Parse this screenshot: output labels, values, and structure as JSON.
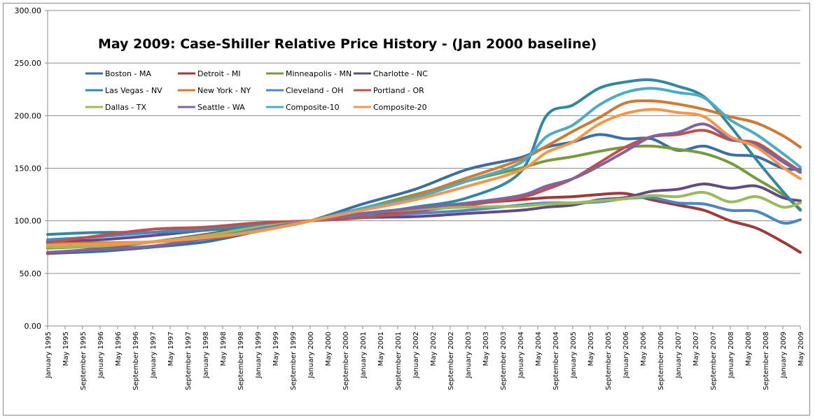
{
  "chart_data": {
    "type": "line",
    "title": "May 2009: Case-Shiller Relative Price History - (Jan 2000 baseline)",
    "xlabel": "",
    "ylabel": "",
    "ylim": [
      0,
      300
    ],
    "yticks": [
      "0.00",
      "50.00",
      "100.00",
      "150.00",
      "200.00",
      "250.00",
      "300.00"
    ],
    "grid": true,
    "legend_placement": "top-left",
    "xticks": [
      "January 1995",
      "May 1995",
      "September 1995",
      "January 1996",
      "May 1996",
      "September 1996",
      "January 1997",
      "May 1997",
      "September 1997",
      "January 1998",
      "May 1998",
      "September 1998",
      "January 1999",
      "May 1999",
      "September 1999",
      "January 2000",
      "May 2000",
      "September 2000",
      "January 2001",
      "May 2001",
      "September 2001",
      "January 2002",
      "May 2002",
      "September 2002",
      "January 2003",
      "May 2003",
      "September 2003",
      "January 2004",
      "May 2004",
      "September 2004",
      "January 2005",
      "May 2005",
      "September 2005",
      "January 2006",
      "May 2006",
      "September 2006",
      "January 2007",
      "May 2007",
      "September 2007",
      "January 2008",
      "May 2008",
      "September 2008",
      "January 2009",
      "May 2009"
    ],
    "x": [
      "1995-01",
      "1996-01",
      "1997-01",
      "1998-01",
      "1999-01",
      "2000-01",
      "2001-01",
      "2002-01",
      "2003-01",
      "2004-01",
      "2004-07",
      "2005-01",
      "2005-07",
      "2006-01",
      "2006-07",
      "2007-01",
      "2007-07",
      "2008-01",
      "2008-07",
      "2009-01",
      "2009-05"
    ],
    "series": [
      {
        "name": "Boston - MA",
        "color": "#3A6EA5",
        "values": [
          69,
          71,
          75,
          80,
          90,
          100,
          116,
          130,
          149,
          160,
          170,
          175,
          182,
          178,
          178,
          167,
          171,
          163,
          161,
          150,
          149
        ]
      },
      {
        "name": "Detroit - MI",
        "color": "#A03A3A",
        "values": [
          69,
          74,
          80,
          87,
          95,
          100,
          106,
          110,
          116,
          120,
          122,
          123,
          125,
          126,
          120,
          115,
          110,
          100,
          93,
          80,
          70
        ]
      },
      {
        "name": "Minneapolis - MN",
        "color": "#779B3B",
        "values": [
          74,
          76,
          80,
          85,
          92,
          100,
          112,
          125,
          138,
          150,
          157,
          161,
          166,
          170,
          171,
          168,
          164,
          155,
          140,
          125,
          111
        ]
      },
      {
        "name": "Charlotte - NC",
        "color": "#624A87",
        "values": [
          80,
          82,
          86,
          91,
          96,
          100,
          103,
          104,
          107,
          110,
          113,
          115,
          120,
          122,
          128,
          130,
          135,
          131,
          133,
          122,
          119
        ]
      },
      {
        "name": "Las Vegas - NV",
        "color": "#31899F",
        "values": [
          87,
          89,
          89,
          91,
          95,
          100,
          106,
          113,
          122,
          146,
          200,
          210,
          226,
          232,
          234,
          228,
          218,
          190,
          158,
          128,
          110
        ]
      },
      {
        "name": "New York - NY",
        "color": "#CF7A30",
        "values": [
          78,
          79,
          80,
          83,
          90,
          100,
          111,
          124,
          141,
          158,
          171,
          185,
          198,
          212,
          214,
          211,
          206,
          199,
          193,
          181,
          170
        ]
      },
      {
        "name": "Cleveland - OH",
        "color": "#4A86C8",
        "values": [
          82,
          85,
          89,
          93,
          97,
          100,
          104,
          107,
          110,
          115,
          117,
          117,
          118,
          121,
          122,
          117,
          116,
          110,
          109,
          98,
          101
        ]
      },
      {
        "name": "Portland - OR",
        "color": "#C0504D",
        "values": [
          79,
          86,
          92,
          94,
          98,
          100,
          103,
          109,
          115,
          122,
          130,
          140,
          155,
          170,
          180,
          182,
          186,
          177,
          174,
          158,
          147
        ]
      },
      {
        "name": "Dallas - TX",
        "color": "#9BBB59",
        "values": [
          75,
          76,
          80,
          86,
          94,
          100,
          107,
          111,
          113,
          114,
          116,
          117,
          119,
          121,
          124,
          123,
          127,
          118,
          123,
          113,
          117
        ]
      },
      {
        "name": "Seattle - WA",
        "color": "#8064A2",
        "values": [
          70,
          73,
          76,
          83,
          92,
          100,
          107,
          112,
          117,
          124,
          133,
          140,
          152,
          166,
          180,
          184,
          192,
          178,
          172,
          156,
          146
        ]
      },
      {
        "name": "Composite-10",
        "color": "#4BACC6",
        "values": [
          77,
          78,
          80,
          84,
          91,
          100,
          112,
          122,
          138,
          155,
          180,
          191,
          210,
          222,
          226,
          222,
          217,
          196,
          182,
          164,
          151
        ]
      },
      {
        "name": "Composite-20",
        "color": "#F79646",
        "values": [
          77,
          78,
          80,
          84,
          90,
          100,
          110,
          120,
          133,
          148,
          165,
          175,
          192,
          202,
          206,
          203,
          199,
          180,
          170,
          151,
          140
        ]
      }
    ]
  }
}
